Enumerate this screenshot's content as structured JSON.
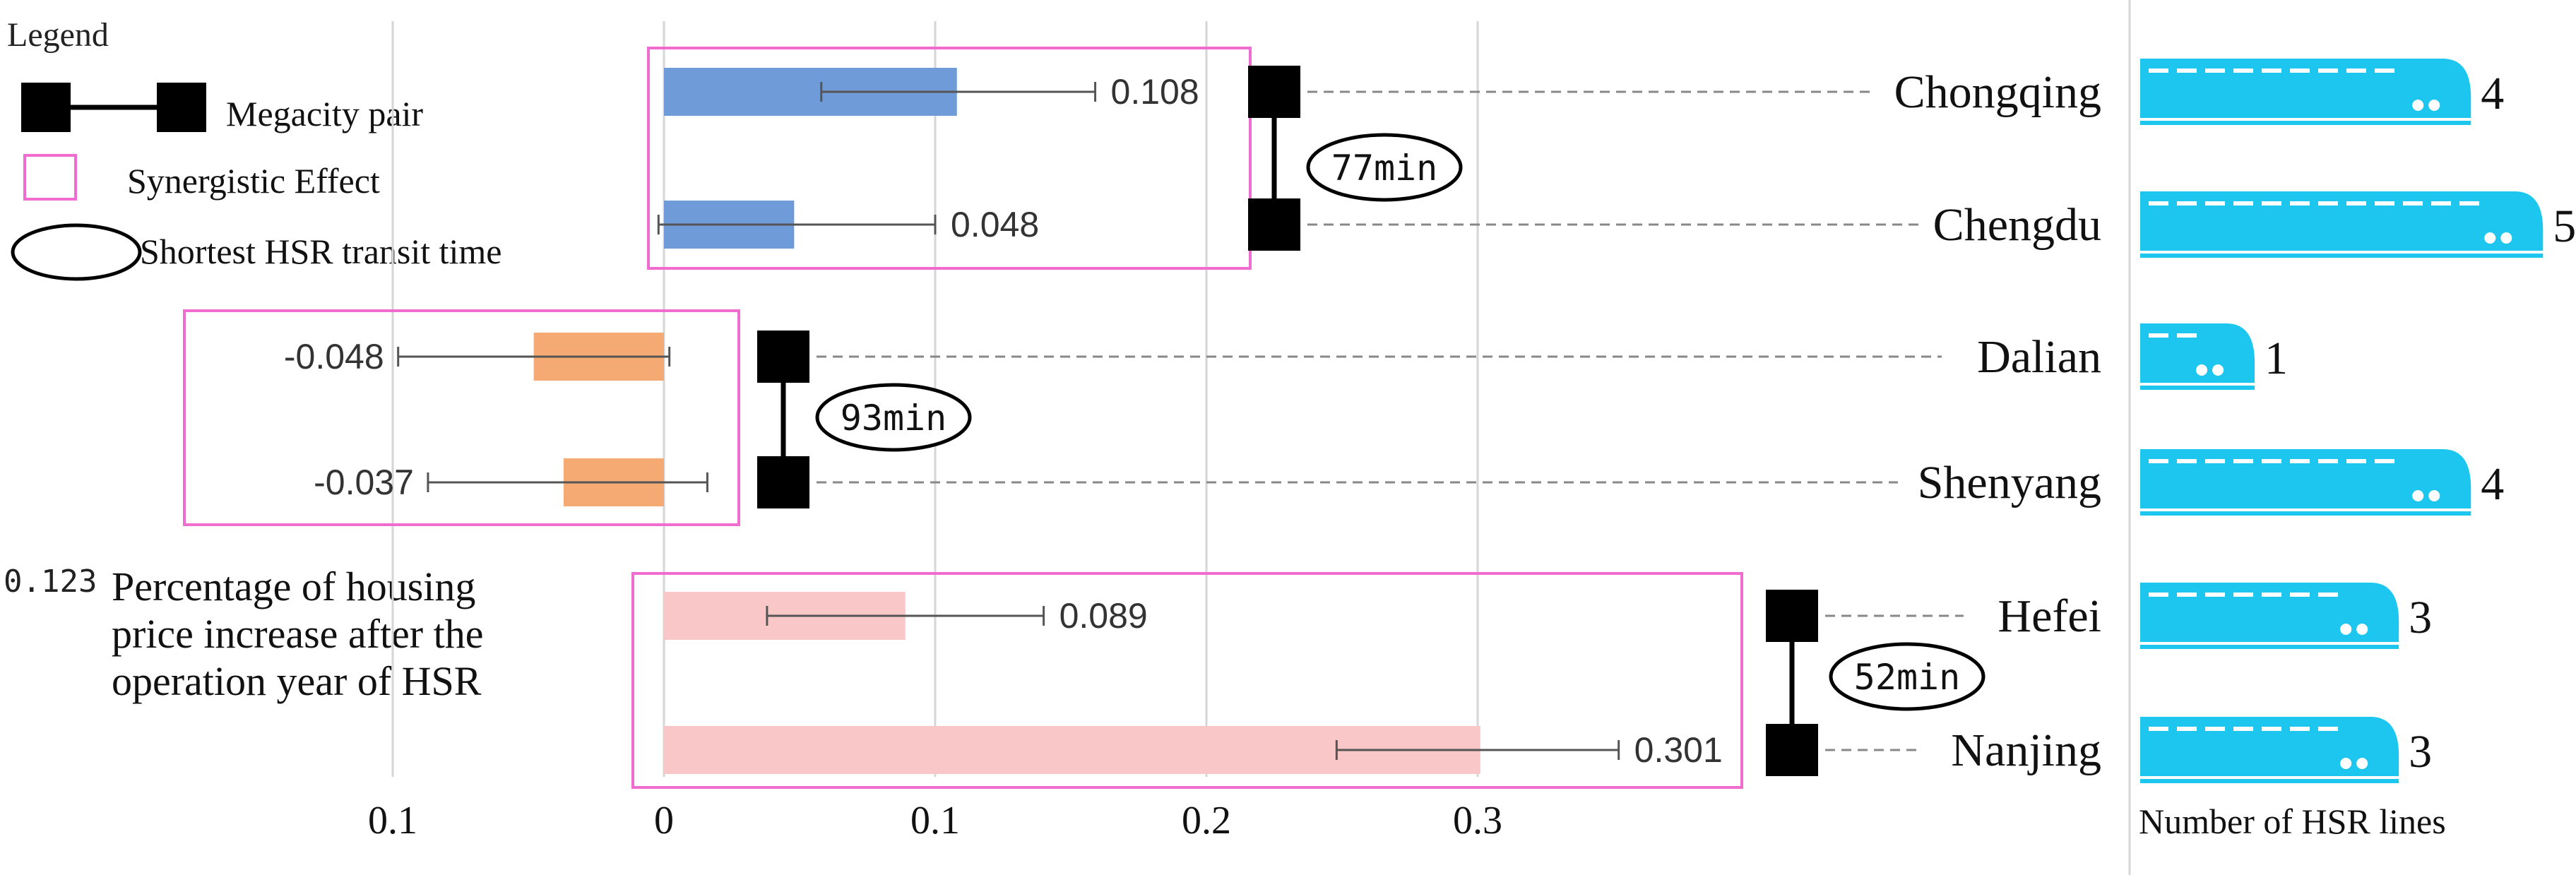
{
  "legend": {
    "title": "Legend",
    "megacity_pair": "Megacity pair",
    "synergistic_effect": "Synergistic Effect",
    "transit_time": "Shortest HSR transit time",
    "value_example": "0.123",
    "value_desc": [
      "Percentage of housing",
      "price increase after the",
      "operation year of HSR"
    ]
  },
  "hsr_label": "Number of HSR lines",
  "colors": {
    "pair1": "#6f9bd8",
    "pair2": "#f5a973",
    "pair3": "#f9c7c8",
    "box": "#f06ccf",
    "train": "#1cc6ee",
    "grid": "#d6d6d6",
    "errorbar": "#555555"
  },
  "chart_data": {
    "type": "bar",
    "orientation": "horizontal",
    "x_ticks": [
      "0.1",
      "0",
      "0.1",
      "0.2",
      "0.3"
    ],
    "x_tick_values": [
      -0.1,
      0,
      0.1,
      0.2,
      0.3
    ],
    "xlim": [
      -0.1,
      0.3
    ],
    "grid": true,
    "pairs": [
      {
        "transit": "77min",
        "cities": [
          {
            "name": "Chongqing",
            "value": 0.108,
            "label": "0.108",
            "ci": [
              0.058,
              0.159
            ],
            "hsr_lines": 4,
            "hsr_label": "4"
          },
          {
            "name": "Chengdu",
            "value": 0.048,
            "label": "0.048",
            "ci": [
              -0.002,
              0.1
            ],
            "hsr_lines": 5,
            "hsr_label": "5"
          }
        ]
      },
      {
        "transit": "93min",
        "cities": [
          {
            "name": "Dalian",
            "value": -0.048,
            "label": "-0.048",
            "ci": [
              -0.098,
              0.002
            ],
            "hsr_lines": 1,
            "hsr_label": "1"
          },
          {
            "name": "Shenyang",
            "value": -0.037,
            "label": "-0.037",
            "ci": [
              -0.087,
              0.016
            ],
            "hsr_lines": 4,
            "hsr_label": "4"
          }
        ]
      },
      {
        "transit": "52min",
        "cities": [
          {
            "name": "Hefei",
            "value": 0.089,
            "label": "0.089",
            "ci": [
              0.038,
              0.14
            ],
            "hsr_lines": 3,
            "hsr_label": "3"
          },
          {
            "name": "Nanjing",
            "value": 0.301,
            "label": "0.301",
            "ci": [
              0.248,
              0.352
            ],
            "hsr_lines": 3,
            "hsr_label": "3"
          }
        ]
      }
    ]
  }
}
